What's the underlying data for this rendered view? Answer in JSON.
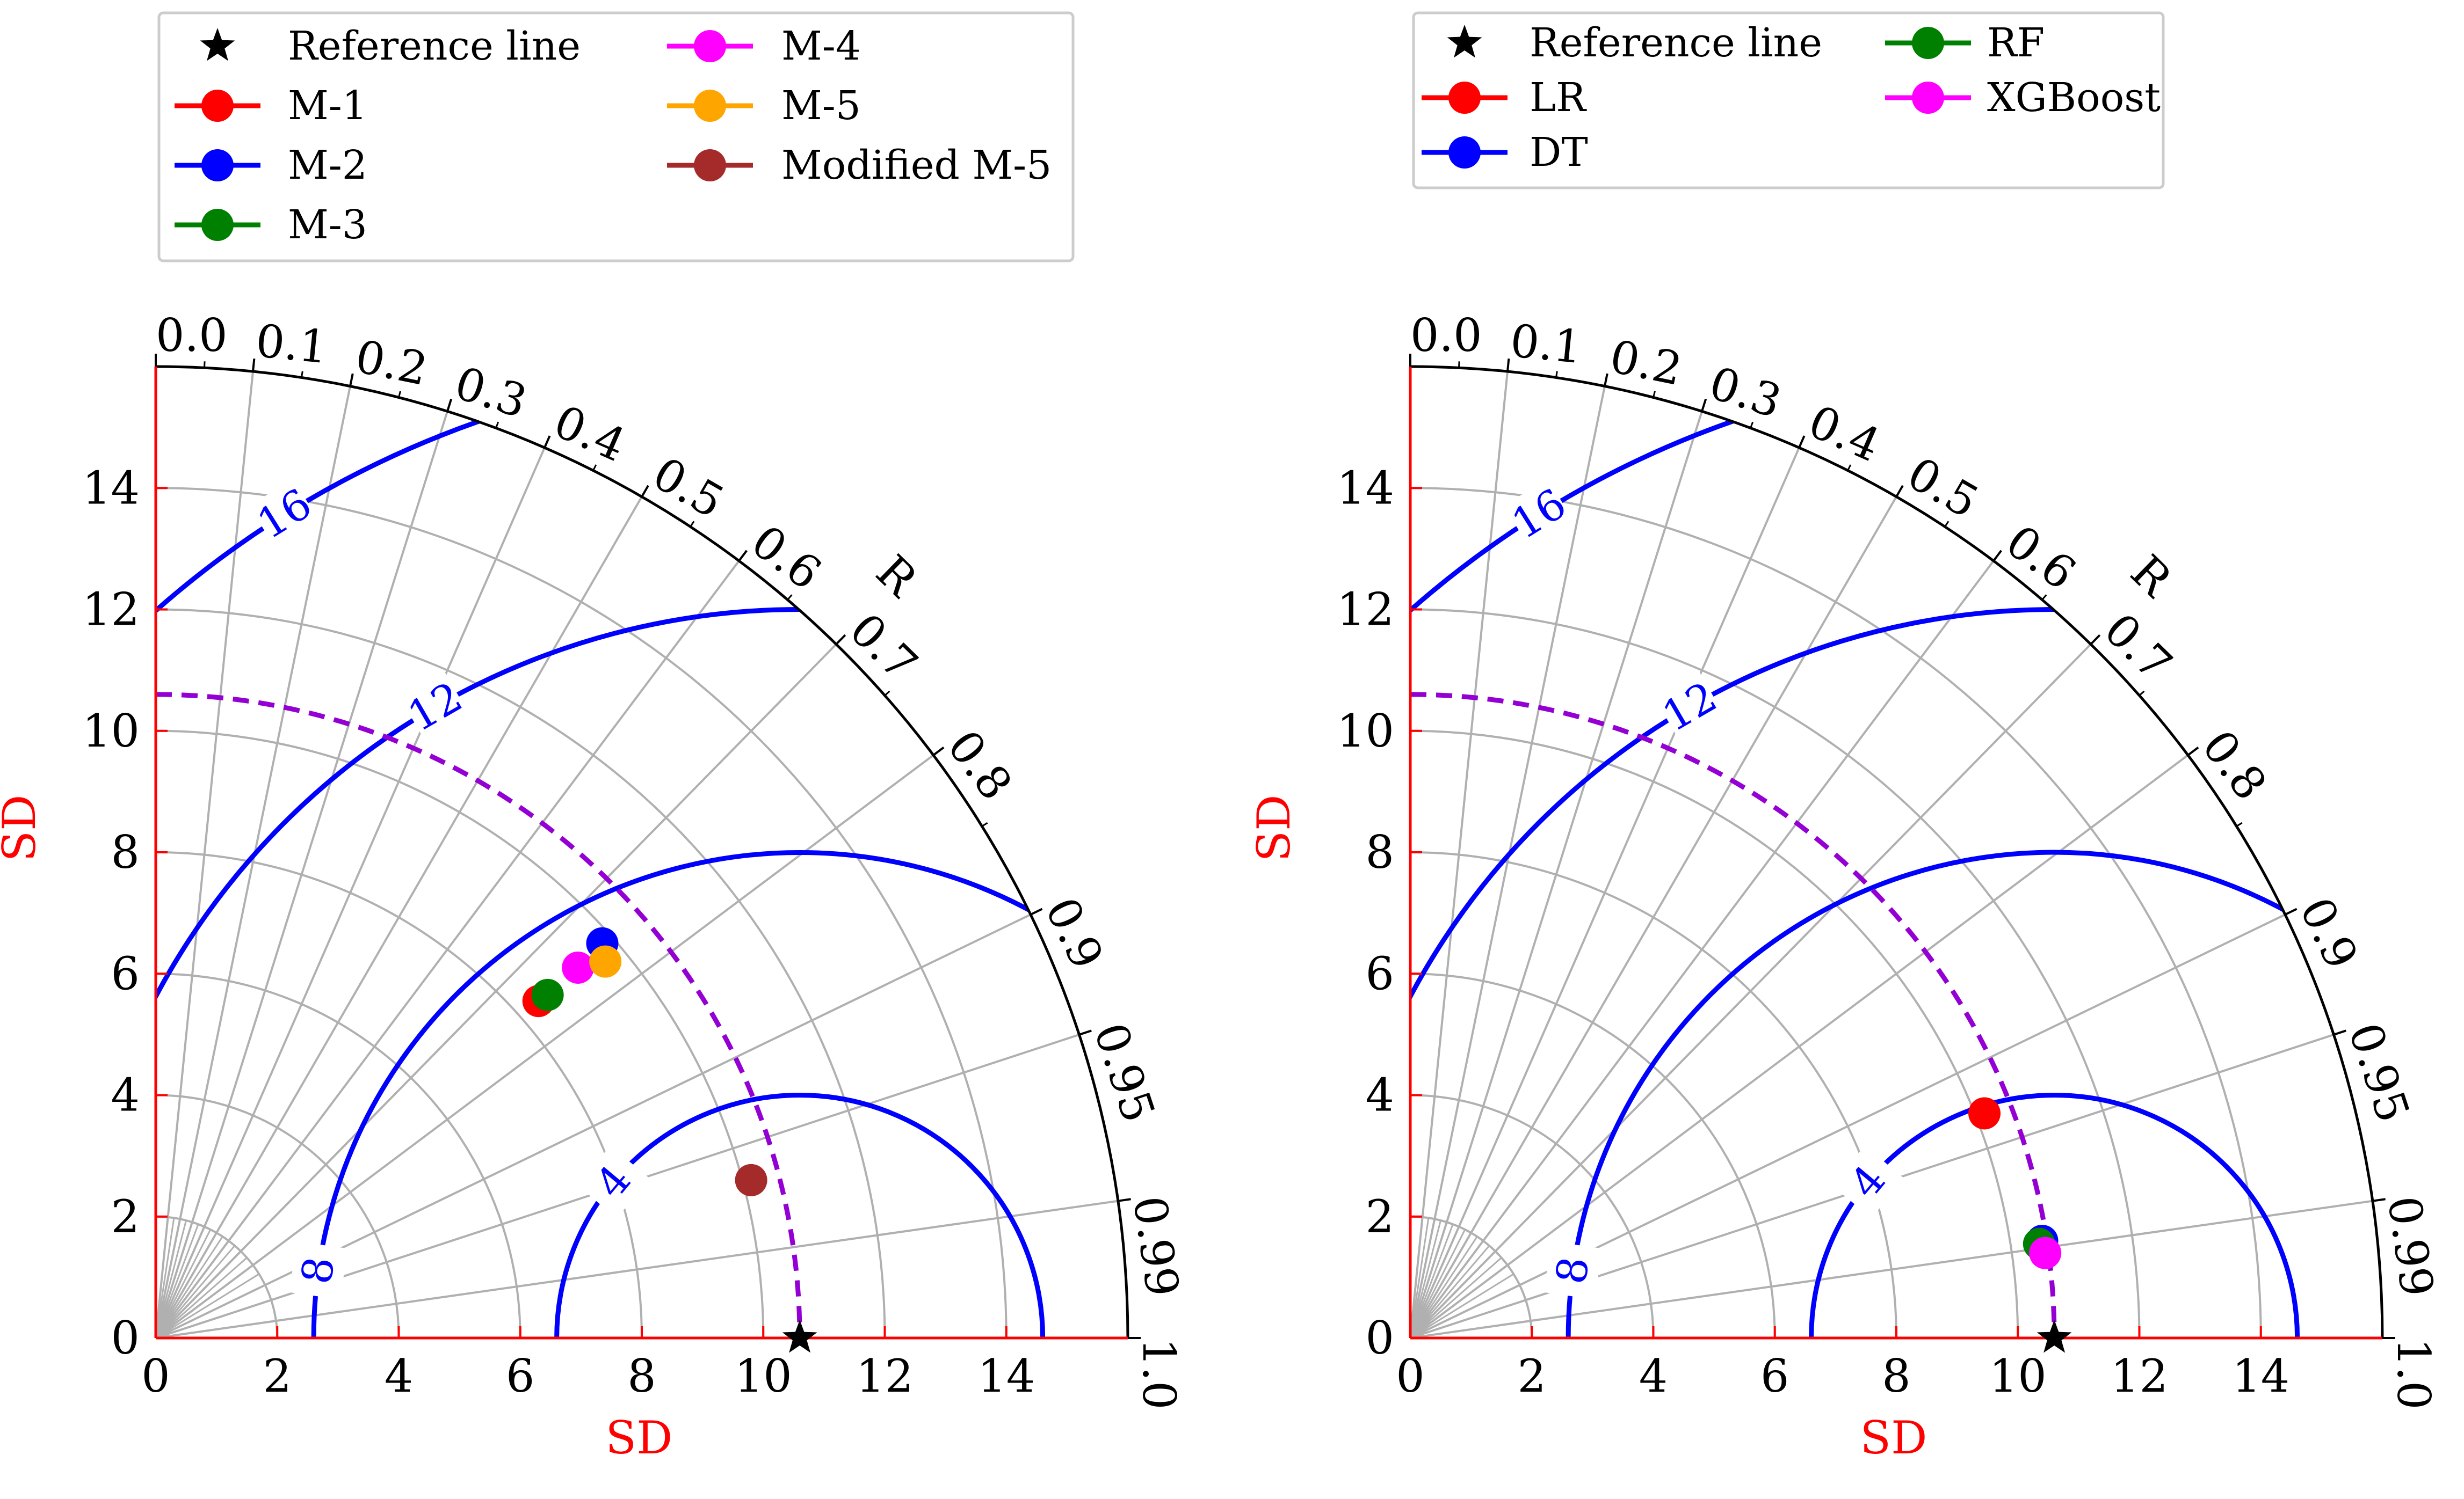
{
  "chart_data": [
    {
      "type": "taylor",
      "xlabel": "SD",
      "ylabel": "SD",
      "corr_label": "R",
      "sd_max": 16,
      "sd_ticks": [
        0,
        2,
        4,
        6,
        8,
        10,
        12,
        14
      ],
      "corr_ticks": [
        0.0,
        0.1,
        0.2,
        0.3,
        0.4,
        0.5,
        0.6,
        0.7,
        0.8,
        0.9,
        0.95,
        0.99,
        1.0
      ],
      "corr_tick_labels": [
        "0.0",
        "0.1",
        "0.2",
        "0.3",
        "0.4",
        "0.5",
        "0.6",
        "0.7",
        "0.8",
        "0.9",
        "0.95",
        "0.99",
        "1.0"
      ],
      "reference": {
        "name": "Reference line",
        "sd": 10.6,
        "color": "#000000"
      },
      "rms_contours": [
        4,
        8,
        12,
        16
      ],
      "rms_labels": [
        "4",
        "8",
        "12",
        "16"
      ],
      "rms_color": "#0000ff",
      "ref_arc_color": "#9400d3",
      "legend": {
        "placement": "top",
        "columns": 2
      },
      "series": [
        {
          "name": "M-1",
          "color": "#ff0000",
          "x": 6.3,
          "y": 5.55
        },
        {
          "name": "M-2",
          "color": "#0000ff",
          "x": 7.35,
          "y": 6.5
        },
        {
          "name": "M-3",
          "color": "#008000",
          "x": 6.45,
          "y": 5.65
        },
        {
          "name": "M-4",
          "color": "#ff00ff",
          "x": 6.95,
          "y": 6.1
        },
        {
          "name": "M-5",
          "color": "#ffa500",
          "x": 7.4,
          "y": 6.2
        },
        {
          "name": "Modified M-5",
          "color": "#a52a2a",
          "x": 9.8,
          "y": 2.6
        }
      ]
    },
    {
      "type": "taylor",
      "xlabel": "SD",
      "ylabel": "SD",
      "corr_label": "R",
      "sd_max": 16,
      "sd_ticks": [
        0,
        2,
        4,
        6,
        8,
        10,
        12,
        14
      ],
      "corr_ticks": [
        0.0,
        0.1,
        0.2,
        0.3,
        0.4,
        0.5,
        0.6,
        0.7,
        0.8,
        0.9,
        0.95,
        0.99,
        1.0
      ],
      "corr_tick_labels": [
        "0.0",
        "0.1",
        "0.2",
        "0.3",
        "0.4",
        "0.5",
        "0.6",
        "0.7",
        "0.8",
        "0.9",
        "0.95",
        "0.99",
        "1.0"
      ],
      "reference": {
        "name": "Reference line",
        "sd": 10.6,
        "color": "#000000"
      },
      "rms_contours": [
        4,
        8,
        12,
        16
      ],
      "rms_labels": [
        "4",
        "8",
        "12",
        "16"
      ],
      "rms_color": "#0000ff",
      "ref_arc_color": "#9400d3",
      "legend": {
        "placement": "top",
        "columns": 2
      },
      "series": [
        {
          "name": "LR",
          "color": "#ff0000",
          "x": 9.45,
          "y": 3.7
        },
        {
          "name": "DT",
          "color": "#0000ff",
          "x": 10.4,
          "y": 1.6
        },
        {
          "name": "RF",
          "color": "#008000",
          "x": 10.35,
          "y": 1.55
        },
        {
          "name": "XGBoost",
          "color": "#ff00ff",
          "x": 10.45,
          "y": 1.4
        }
      ]
    }
  ]
}
